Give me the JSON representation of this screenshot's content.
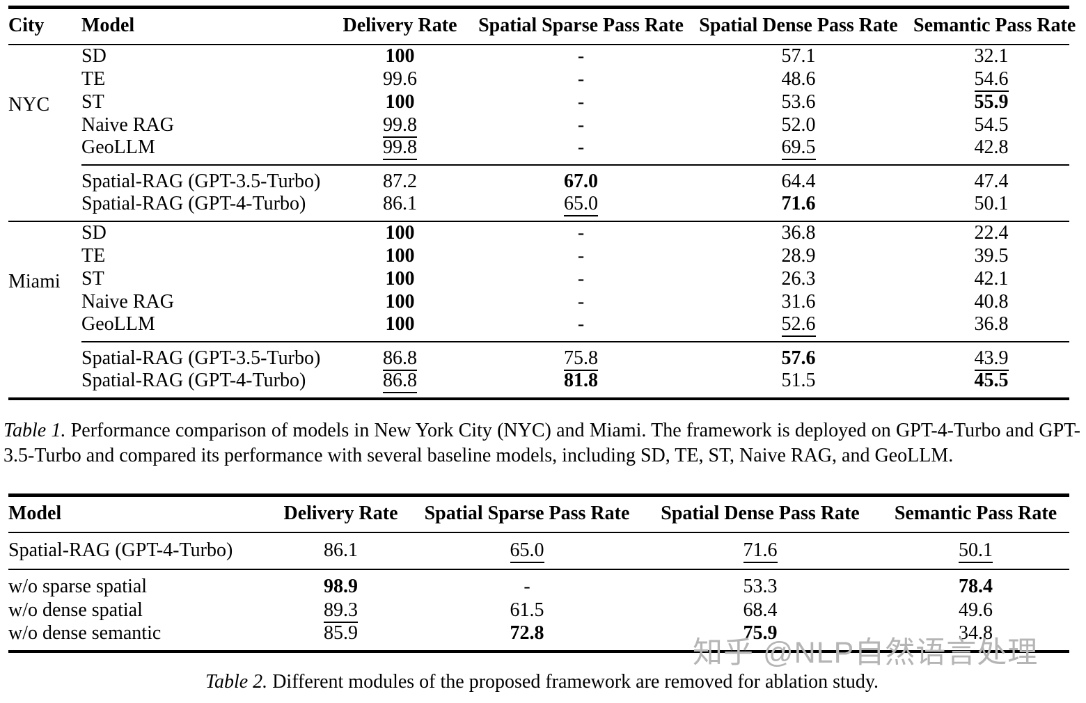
{
  "watermark": "知乎 @NLP自然语言处理",
  "table1": {
    "headers": {
      "city": "City",
      "model": "Model",
      "delivery": "Delivery Rate",
      "sparse": "Spatial Sparse Pass Rate",
      "dense": "Spatial Dense Pass Rate",
      "semantic": "Semantic Pass Rate"
    },
    "sections": [
      {
        "city": "NYC",
        "baselines": [
          {
            "model": "SD",
            "cells": [
              [
                "100",
                "b"
              ],
              [
                "-",
                ""
              ],
              [
                "57.1",
                ""
              ],
              [
                "32.1",
                ""
              ]
            ]
          },
          {
            "model": "TE",
            "cells": [
              [
                "99.6",
                ""
              ],
              [
                "-",
                ""
              ],
              [
                "48.6",
                ""
              ],
              [
                "54.6",
                "u"
              ]
            ]
          },
          {
            "model": "ST",
            "cells": [
              [
                "100",
                "b"
              ],
              [
                "-",
                ""
              ],
              [
                "53.6",
                ""
              ],
              [
                "55.9",
                "b"
              ]
            ]
          },
          {
            "model": "Naive RAG",
            "cells": [
              [
                "99.8",
                "u"
              ],
              [
                "-",
                ""
              ],
              [
                "52.0",
                ""
              ],
              [
                "54.5",
                ""
              ]
            ]
          },
          {
            "model": "GeoLLM",
            "cells": [
              [
                "99.8",
                "u"
              ],
              [
                "-",
                ""
              ],
              [
                "69.5",
                "u"
              ],
              [
                "42.8",
                ""
              ]
            ]
          }
        ],
        "spatial": [
          {
            "model": "Spatial-RAG (GPT-3.5-Turbo)",
            "cells": [
              [
                "87.2",
                ""
              ],
              [
                "67.0",
                "b"
              ],
              [
                "64.4",
                ""
              ],
              [
                "47.4",
                ""
              ]
            ]
          },
          {
            "model": "Spatial-RAG (GPT-4-Turbo)",
            "cells": [
              [
                "86.1",
                ""
              ],
              [
                "65.0",
                "u"
              ],
              [
                "71.6",
                "b"
              ],
              [
                "50.1",
                ""
              ]
            ]
          }
        ]
      },
      {
        "city": "Miami",
        "baselines": [
          {
            "model": "SD",
            "cells": [
              [
                "100",
                "b"
              ],
              [
                "-",
                ""
              ],
              [
                "36.8",
                ""
              ],
              [
                "22.4",
                ""
              ]
            ]
          },
          {
            "model": "TE",
            "cells": [
              [
                "100",
                "b"
              ],
              [
                "-",
                ""
              ],
              [
                "28.9",
                ""
              ],
              [
                "39.5",
                ""
              ]
            ]
          },
          {
            "model": "ST",
            "cells": [
              [
                "100",
                "b"
              ],
              [
                "-",
                ""
              ],
              [
                "26.3",
                ""
              ],
              [
                "42.1",
                ""
              ]
            ]
          },
          {
            "model": "Naive RAG",
            "cells": [
              [
                "100",
                "b"
              ],
              [
                "-",
                ""
              ],
              [
                "31.6",
                ""
              ],
              [
                "40.8",
                ""
              ]
            ]
          },
          {
            "model": "GeoLLM",
            "cells": [
              [
                "100",
                "b"
              ],
              [
                "-",
                ""
              ],
              [
                "52.6",
                "u"
              ],
              [
                "36.8",
                ""
              ]
            ]
          }
        ],
        "spatial": [
          {
            "model": "Spatial-RAG (GPT-3.5-Turbo)",
            "cells": [
              [
                "86.8",
                "u"
              ],
              [
                "75.8",
                "u"
              ],
              [
                "57.6",
                "b"
              ],
              [
                "43.9",
                "u"
              ]
            ]
          },
          {
            "model": "Spatial-RAG (GPT-4-Turbo)",
            "cells": [
              [
                "86.8",
                "u"
              ],
              [
                "81.8",
                "b"
              ],
              [
                "51.5",
                ""
              ],
              [
                "45.5",
                "b"
              ]
            ]
          }
        ]
      }
    ],
    "caption_label": "Table 1.",
    "caption_text": "Performance comparison of models in New York City (NYC) and Miami. The framework is deployed on GPT-4-Turbo and GPT-3.5-Turbo and compared its performance with several baseline models, including SD, TE, ST, Naive RAG, and GeoLLM."
  },
  "table2": {
    "headers": {
      "model": "Model",
      "delivery": "Delivery Rate",
      "sparse": "Spatial Sparse Pass Rate",
      "dense": "Spatial Dense Pass Rate",
      "semantic": "Semantic Pass Rate"
    },
    "main_row": {
      "model": "Spatial-RAG (GPT-4-Turbo)",
      "cells": [
        [
          "86.1",
          ""
        ],
        [
          "65.0",
          "u"
        ],
        [
          "71.6",
          "u"
        ],
        [
          "50.1",
          "u"
        ]
      ]
    },
    "ablation_rows": [
      {
        "model": "w/o sparse spatial",
        "cells": [
          [
            "98.9",
            "b"
          ],
          [
            "-",
            ""
          ],
          [
            "53.3",
            ""
          ],
          [
            "78.4",
            "b"
          ]
        ]
      },
      {
        "model": "w/o dense spatial",
        "cells": [
          [
            "89.3",
            "u"
          ],
          [
            "61.5",
            ""
          ],
          [
            "68.4",
            ""
          ],
          [
            "49.6",
            ""
          ]
        ]
      },
      {
        "model": "w/o dense semantic",
        "cells": [
          [
            "85.9",
            ""
          ],
          [
            "72.8",
            "b"
          ],
          [
            "75.9",
            "b"
          ],
          [
            "34.8",
            ""
          ]
        ]
      }
    ],
    "caption_label": "Table 2.",
    "caption_text": "Different modules of the proposed framework are removed for ablation study."
  }
}
